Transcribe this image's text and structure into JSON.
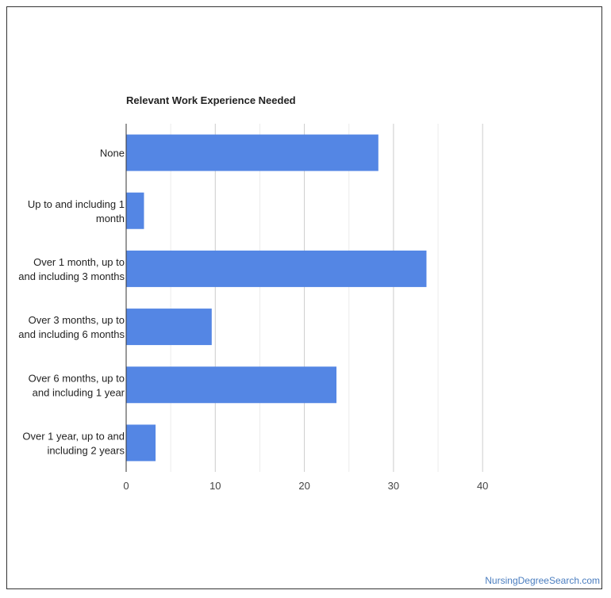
{
  "chart_data": {
    "type": "bar",
    "orientation": "horizontal",
    "title": "Relevant Work Experience Needed",
    "categories": [
      [
        "None"
      ],
      [
        "Up to and including 1",
        "month"
      ],
      [
        "Over 1 month, up to",
        "and including 3 months"
      ],
      [
        "Over 3 months, up to",
        "and including 6 months"
      ],
      [
        "Over 6 months, up to",
        "and including 1 year"
      ],
      [
        "Over 1 year, up to and",
        "including 2 years"
      ]
    ],
    "values": [
      28.3,
      2.0,
      33.7,
      9.6,
      23.6,
      3.3
    ],
    "xlim": [
      0,
      40
    ],
    "xticks": [
      "0",
      "10",
      "20",
      "30",
      "40"
    ],
    "grid": true,
    "bar_color": "#5486e4"
  },
  "watermark": "NursingDegreeSearch.com"
}
